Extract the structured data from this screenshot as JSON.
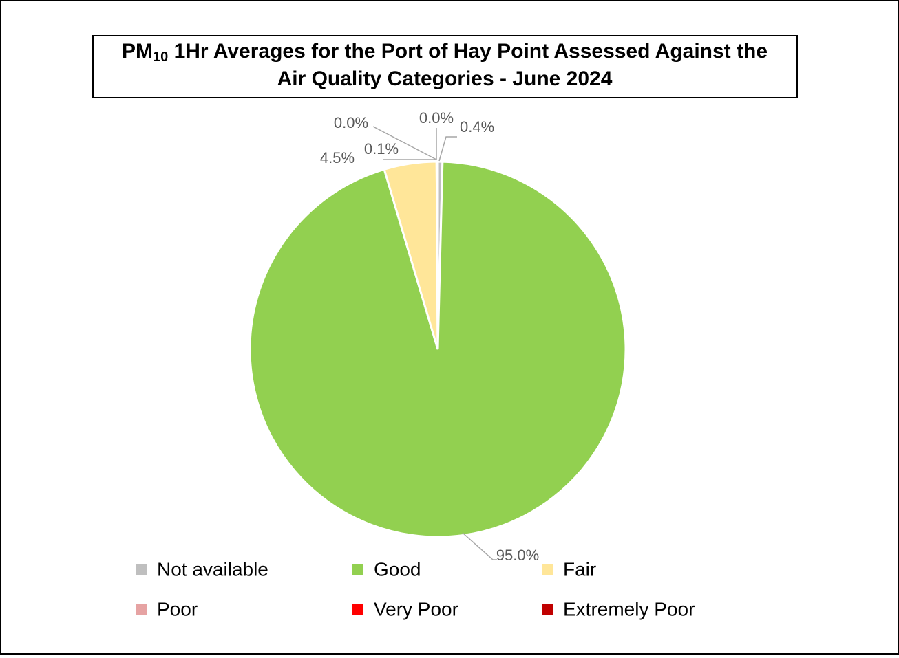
{
  "chart_data": {
    "type": "pie",
    "title": [
      "PM",
      "10",
      " 1Hr Averages for the Port of Hay Point Assessed Against the",
      "Air Quality Categories - June 2024"
    ],
    "categories": [
      "Not available",
      "Good",
      "Fair",
      "Poor",
      "Very Poor",
      "Extremely Poor"
    ],
    "values": [
      0.4,
      95.0,
      4.5,
      0.1,
      0.0,
      0.0
    ],
    "value_labels": [
      "0.4%",
      "95.0%",
      "4.5%",
      "0.1%",
      "0.0%",
      "0.0%"
    ],
    "colors": [
      "#bfbfbf",
      "#92d050",
      "#ffe699",
      "#e6a3a3",
      "#ff0000",
      "#c00000"
    ],
    "legend": "bottom"
  }
}
